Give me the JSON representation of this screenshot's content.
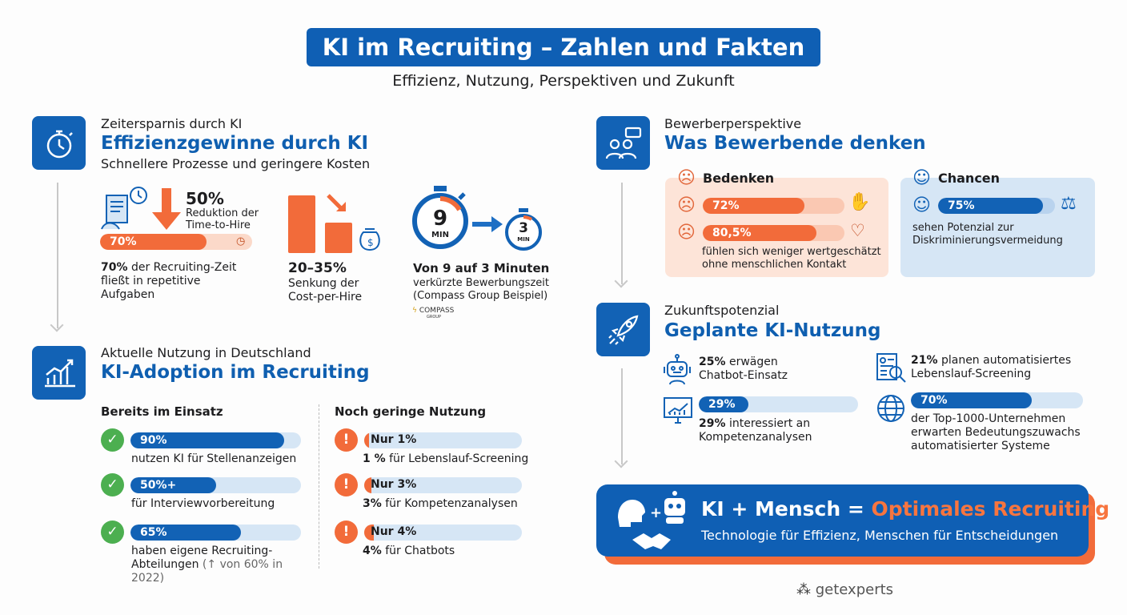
{
  "header": {
    "title": "KI im Recruiting – Zahlen und Fakten",
    "subtitle": "Effizienz, Nutzung, Perspektiven und Zukunft"
  },
  "colors": {
    "blue": "#0f5fb4",
    "orange": "#f26b3a",
    "light_blue": "#d6e6f5",
    "light_orange": "#fde4d8",
    "green": "#4caf50"
  },
  "efficiency": {
    "kicker": "Zeitersparnis durch KI",
    "title": "Effizienzgewinne durch KI",
    "subtitle": "Schnellere Prozesse und geringere Kosten",
    "time_to_hire": {
      "value": "50%",
      "line1": "Reduktion der",
      "line2": "Time-to-Hire"
    },
    "repetitive": {
      "bar_label": "70%",
      "percent": 70,
      "bold": "70%",
      "text": " der Recruiting-Zeit fließt in repetitive Aufgaben"
    },
    "cost": {
      "value": "20–35%",
      "line1": "Senkung der",
      "line2": "Cost-per-Hire"
    },
    "time": {
      "big": "9",
      "small": "3",
      "unit": "MIN",
      "bold": "Von 9 auf 3 Minuten",
      "line1": "verkürzte Bewerbungszeit",
      "line2": "(Compass Group Beispiel)",
      "logo": "COMPASS",
      "logo_sub": "GROUP"
    }
  },
  "adoption": {
    "kicker": "Aktuelle Nutzung in Deutschland",
    "title": "KI-Adoption im Recruiting",
    "in_use": {
      "heading": "Bereits im Einsatz",
      "items": [
        {
          "label": "90%",
          "percent": 90,
          "text": "nutzen KI für Stellenanzeigen",
          "icon": "document-icon"
        },
        {
          "label": "50%+",
          "percent": 50,
          "text": "für Interviewvorbereitung",
          "icon": "microphone-icon"
        },
        {
          "label": "65%",
          "percent": 65,
          "text": "haben eigene Recruiting-Abteilungen",
          "note": "(↑ von 60% in 2022)",
          "icon": "building-icon"
        }
      ]
    },
    "low_use": {
      "heading": "Noch geringe Nutzung",
      "items": [
        {
          "label": "Nur 1%",
          "percent": 1,
          "bold": "1 %",
          "text": " für Lebenslauf-Screening"
        },
        {
          "label": "Nur 3%",
          "percent": 3,
          "bold": "3%",
          "text": " für Kompetenzanalysen"
        },
        {
          "label": "Nur 4%",
          "percent": 4,
          "bold": "4%",
          "text": " für Chatbots"
        }
      ]
    }
  },
  "candidates": {
    "kicker": "Bewerberperspektive",
    "title": "Was Bewerbende denken",
    "concerns": {
      "heading": "Bedenken",
      "items": [
        {
          "label": "72%",
          "percent": 72
        },
        {
          "label": "80,5%",
          "percent": 80.5
        }
      ],
      "text1": "fühlen sich weniger wertgeschätzt",
      "text2": "ohne menschlichen Kontakt"
    },
    "chances": {
      "heading": "Chancen",
      "label": "75%",
      "percent": 75,
      "text1": "sehen Potenzial zur",
      "text2": "Diskriminierungsvermeidung"
    }
  },
  "future": {
    "kicker": "Zukunftspotenzial",
    "title": "Geplante KI-Nutzung",
    "chatbot": {
      "bold": "25%",
      "text1": " erwägen",
      "text2": "Chatbot-Einsatz"
    },
    "competence": {
      "label": "29%",
      "percent": 29,
      "bold": "29%",
      "text1": " interessiert an",
      "text2": "Kompetenzanalysen"
    },
    "screening": {
      "bold": "21%",
      "text1": " planen automatisiertes",
      "text2": "Lebenslauf-Screening"
    },
    "top1000": {
      "label": "70%",
      "percent": 70,
      "text1": "der Top-1000-Unternehmen",
      "text2": "erwarten Bedeutungszuwachs",
      "text3": "automatisierter Systeme"
    }
  },
  "banner": {
    "part1": "KI + Mensch = ",
    "part2": "Optimales Recruiting",
    "subtitle": "Technologie für Effizienz, Menschen für Entscheidungen"
  },
  "footer": {
    "brand": "getexperts"
  }
}
